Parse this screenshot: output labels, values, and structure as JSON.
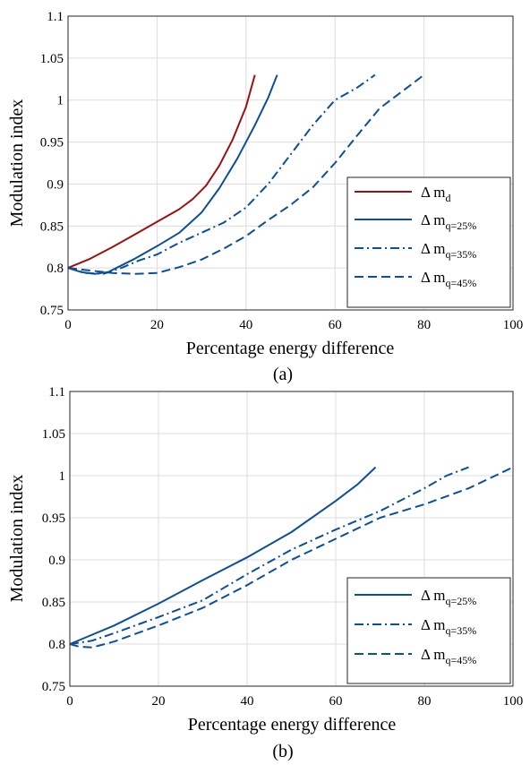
{
  "chart_data": [
    {
      "type": "line",
      "caption": "(a)",
      "xlabel": "Percentage energy difference",
      "ylabel": "Modulation index",
      "xlim": [
        0,
        100
      ],
      "ylim": [
        0.75,
        1.1
      ],
      "xticks": [
        "0",
        "20",
        "40",
        "60",
        "80",
        "100"
      ],
      "yticks": [
        "0.75",
        "0.8",
        "0.85",
        "0.9",
        "0.95",
        "1",
        "1.05",
        "1.1"
      ],
      "grid": true,
      "legend_position": "lower-right",
      "series": [
        {
          "name": "Δ m",
          "subscript": "d",
          "color": "#9c1010",
          "dash": "solid",
          "x": [
            0,
            5,
            10,
            15,
            20,
            25,
            28,
            31,
            34,
            37,
            40,
            42
          ],
          "y": [
            0.8,
            0.811,
            0.825,
            0.84,
            0.855,
            0.87,
            0.882,
            0.898,
            0.922,
            0.953,
            0.992,
            1.03
          ]
        },
        {
          "name": "Δ m",
          "subscript": "q=25%",
          "color": "#0c4f99",
          "dash": "solid",
          "x": [
            0,
            3,
            6,
            9,
            12,
            15,
            20,
            25,
            30,
            34,
            38,
            42,
            45,
            47
          ],
          "y": [
            0.8,
            0.795,
            0.793,
            0.795,
            0.803,
            0.811,
            0.826,
            0.842,
            0.866,
            0.895,
            0.93,
            0.97,
            1.003,
            1.03
          ]
        },
        {
          "name": "Δ m",
          "subscript": "q=35%",
          "color": "#0c4f99",
          "dash": "dashdot",
          "x": [
            0,
            4,
            8,
            12,
            16,
            20,
            25,
            30,
            35,
            40,
            45,
            50,
            55,
            60,
            65,
            69
          ],
          "y": [
            0.8,
            0.794,
            0.793,
            0.8,
            0.809,
            0.816,
            0.83,
            0.842,
            0.854,
            0.872,
            0.9,
            0.935,
            0.97,
            1.0,
            1.015,
            1.03
          ]
        },
        {
          "name": "Δ m",
          "subscript": "q=45%",
          "color": "#0c4f99",
          "dash": "dashed",
          "x": [
            0,
            5,
            10,
            15,
            20,
            25,
            30,
            35,
            40,
            45,
            50,
            55,
            60,
            65,
            70,
            75,
            80
          ],
          "y": [
            0.8,
            0.797,
            0.794,
            0.793,
            0.794,
            0.801,
            0.81,
            0.823,
            0.838,
            0.857,
            0.875,
            0.896,
            0.925,
            0.958,
            0.99,
            1.01,
            1.03
          ]
        }
      ]
    },
    {
      "type": "line",
      "caption": "(b)",
      "xlabel": "Percentage energy difference",
      "ylabel": "Modulation index",
      "xlim": [
        0,
        100
      ],
      "ylim": [
        0.75,
        1.1
      ],
      "xticks": [
        "0",
        "20",
        "40",
        "60",
        "80",
        "100"
      ],
      "yticks": [
        "0.75",
        "0.8",
        "0.85",
        "0.9",
        "0.95",
        "1",
        "1.05",
        "1.1"
      ],
      "grid": true,
      "legend_position": "lower-right",
      "series": [
        {
          "name": "Δ m",
          "subscript": "q=25%",
          "color": "#0c4f99",
          "dash": "solid",
          "x": [
            0,
            10,
            20,
            30,
            40,
            50,
            60,
            65,
            69
          ],
          "y": [
            0.8,
            0.822,
            0.848,
            0.876,
            0.903,
            0.933,
            0.97,
            0.99,
            1.01
          ]
        },
        {
          "name": "Δ m",
          "subscript": "q=35%",
          "color": "#0c4f99",
          "dash": "dashdot",
          "x": [
            0,
            5,
            10,
            20,
            30,
            40,
            50,
            60,
            70,
            80,
            85,
            90
          ],
          "y": [
            0.8,
            0.804,
            0.813,
            0.832,
            0.852,
            0.883,
            0.912,
            0.936,
            0.958,
            0.985,
            1.0,
            1.01
          ]
        },
        {
          "name": "Δ m",
          "subscript": "q=45%",
          "color": "#0c4f99",
          "dash": "dashed",
          "x": [
            0,
            2,
            5,
            10,
            20,
            30,
            40,
            50,
            60,
            70,
            80,
            90,
            100
          ],
          "y": [
            0.8,
            0.797,
            0.796,
            0.803,
            0.822,
            0.843,
            0.87,
            0.9,
            0.925,
            0.95,
            0.966,
            0.985,
            1.01
          ]
        }
      ]
    }
  ]
}
